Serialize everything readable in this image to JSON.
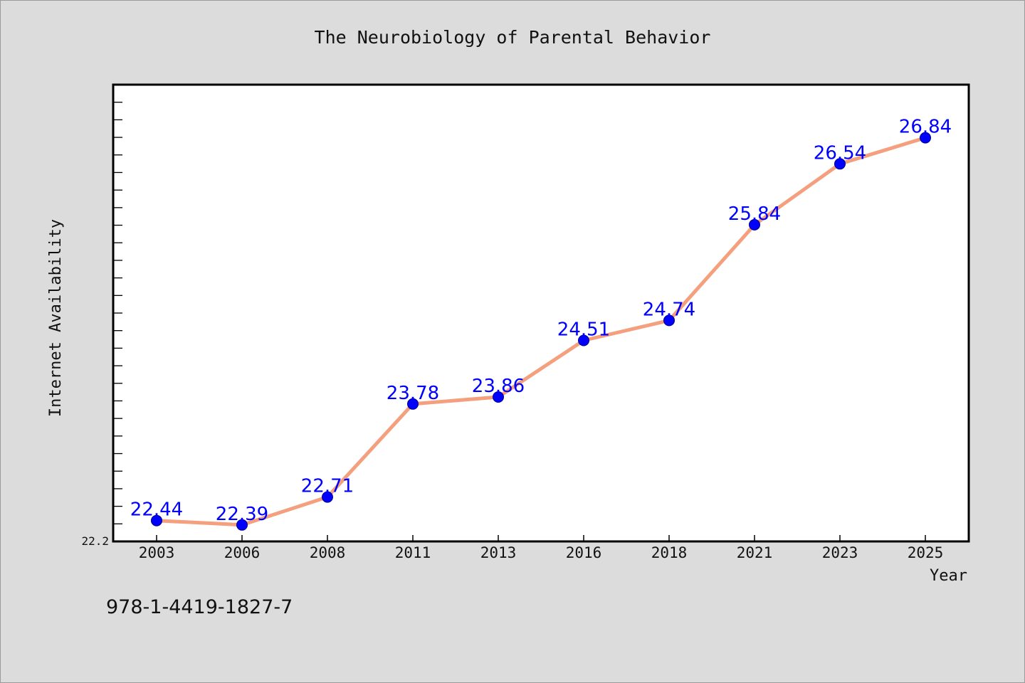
{
  "chart_data": {
    "type": "line",
    "title": "The Neurobiology of Parental Behavior",
    "xlabel": "Year",
    "ylabel": "Internet Availability",
    "categories": [
      "2003",
      "2006",
      "2008",
      "2011",
      "2013",
      "2016",
      "2018",
      "2021",
      "2023",
      "2025"
    ],
    "series": [
      {
        "values": [
          22.44,
          22.39,
          22.71,
          23.78,
          23.86,
          24.51,
          24.74,
          25.84,
          26.54,
          26.84
        ]
      }
    ],
    "data_labels": [
      "22.44",
      "22.39",
      "22.71",
      "23.78",
      "23.86",
      "24.51",
      "24.74",
      "25.84",
      "26.54",
      "26.84"
    ],
    "ylim": [
      22.2,
      27.45
    ],
    "y_tick_label": "22.2",
    "grid": false,
    "legend": "none",
    "colors": {
      "line": "#f4a07e",
      "marker": "#0000ff",
      "data_label": "#0000ff",
      "background": "#dcdcdc",
      "plot_background": "#ffffff"
    },
    "caption": "978-1-4419-1827-7"
  }
}
